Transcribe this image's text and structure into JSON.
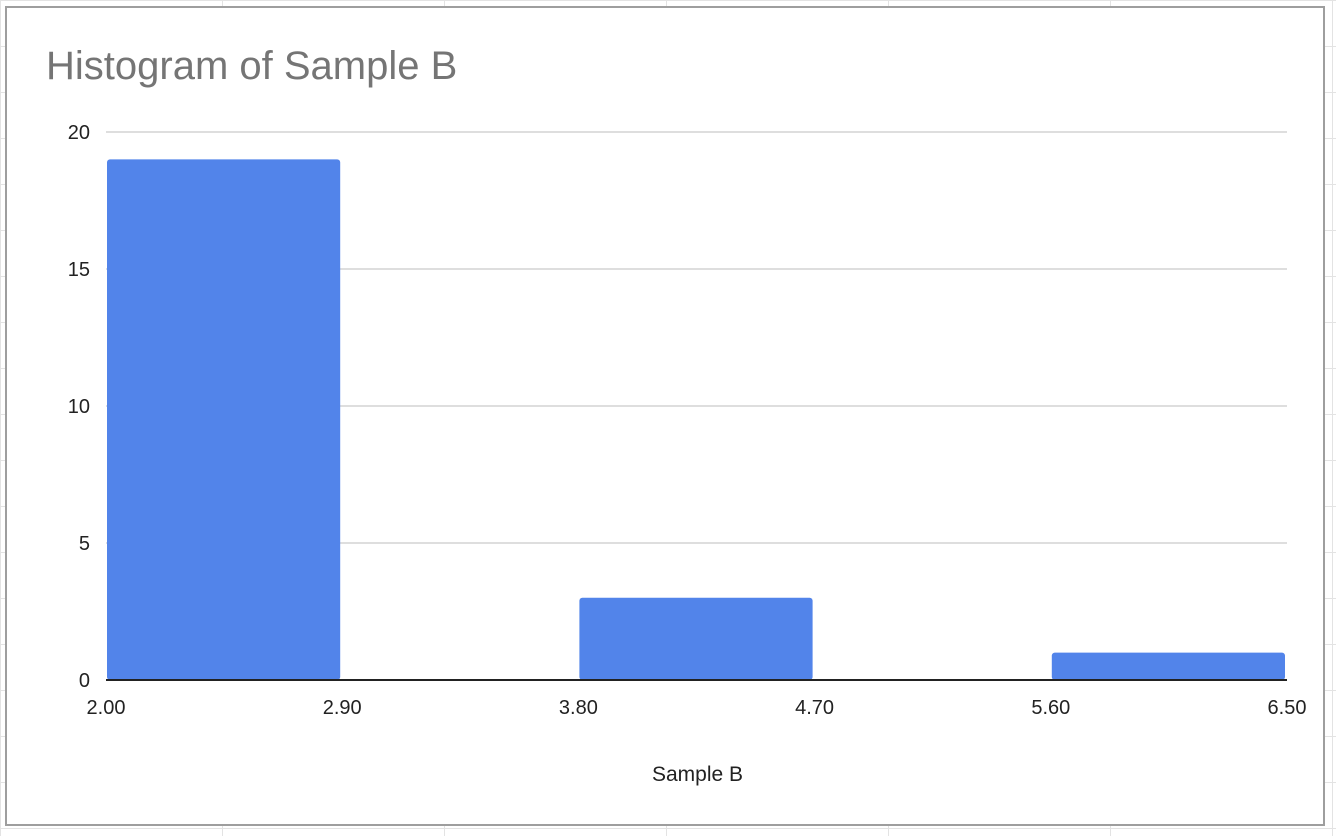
{
  "chart_data": {
    "type": "bar",
    "title": "Histogram of Sample B",
    "xlabel": "Sample B",
    "ylabel": "",
    "bins": [
      {
        "start": 2.0,
        "end": 2.9,
        "count": 19
      },
      {
        "start": 2.9,
        "end": 3.8,
        "count": 0
      },
      {
        "start": 3.8,
        "end": 4.7,
        "count": 3
      },
      {
        "start": 4.7,
        "end": 5.6,
        "count": 0
      },
      {
        "start": 5.6,
        "end": 6.5,
        "count": 1
      }
    ],
    "x_ticks": [
      "2.00",
      "2.90",
      "3.80",
      "4.70",
      "5.60",
      "6.50"
    ],
    "xlim": [
      2.0,
      6.5
    ],
    "y_ticks": [
      0,
      5,
      10,
      15,
      20
    ],
    "ylim": [
      0,
      20
    ],
    "grid": true,
    "legend": "none",
    "colors": {
      "bar": "#5284ea",
      "grid": "#d4d4d4",
      "axis": "#222222",
      "title": "#757575"
    }
  }
}
